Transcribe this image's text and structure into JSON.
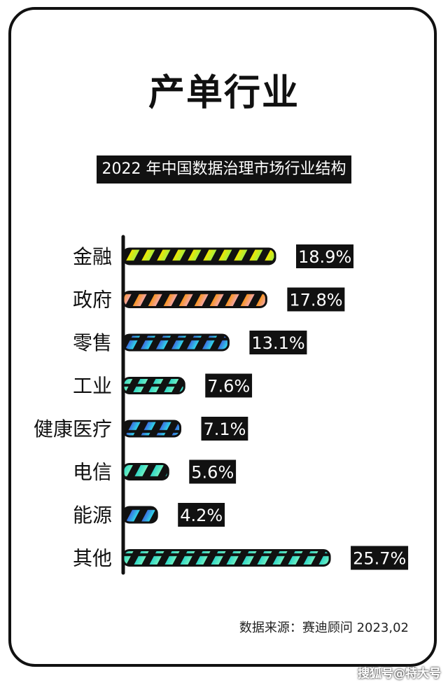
{
  "title": "产单行业",
  "watermark": "搜狐号@特大号",
  "chart_data": {
    "type": "bar",
    "orientation": "horizontal",
    "title": "2022 年中国数据治理市场行业结构",
    "categories": [
      "金融",
      "政府",
      "零售",
      "工业",
      "健康医疗",
      "电信",
      "能源",
      "其他"
    ],
    "values": [
      18.9,
      17.8,
      13.1,
      7.6,
      7.1,
      5.6,
      4.2,
      25.7
    ],
    "value_labels": [
      "18.9%",
      "17.8%",
      "13.1%",
      "7.6%",
      "7.1%",
      "5.6%",
      "4.2%",
      "25.7%"
    ],
    "unit": "%",
    "xlim": [
      0,
      27
    ],
    "grid": false,
    "source": "数据来源：赛迪顾问 2023,02",
    "colors": [
      [
        "#f2e600",
        "#a8f03c"
      ],
      [
        "#f7941d",
        "#f4a6a6"
      ],
      [
        "#3b6fe0",
        "#2fd6e8"
      ],
      [
        "#2fd6c8",
        "#6ef0c0"
      ],
      [
        "#3b6fe0",
        "#2fd6e8"
      ],
      [
        "#2fd6c8",
        "#6ef0c0"
      ],
      [
        "#3b6fe0",
        "#2fd6e8"
      ],
      [
        "#2fd6c8",
        "#6ef0c0"
      ]
    ]
  }
}
